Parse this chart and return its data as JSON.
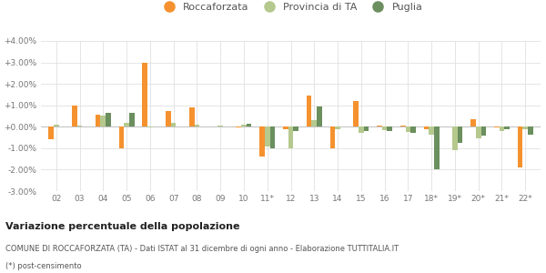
{
  "categories": [
    "02",
    "03",
    "04",
    "05",
    "06",
    "07",
    "08",
    "09",
    "10",
    "11*",
    "12",
    "13",
    "14",
    "15",
    "16",
    "17",
    "18*",
    "19*",
    "20*",
    "21*",
    "22*"
  ],
  "roccaforzata": [
    -0.6,
    1.0,
    0.55,
    -1.0,
    3.0,
    0.75,
    0.9,
    0.0,
    -0.05,
    -1.4,
    -0.1,
    1.45,
    -1.0,
    1.2,
    0.05,
    0.05,
    -0.1,
    0.0,
    0.35,
    -0.05,
    -1.9
  ],
  "provincia_ta": [
    0.1,
    0.05,
    0.5,
    0.2,
    -0.05,
    0.2,
    0.1,
    0.05,
    0.1,
    -0.9,
    -1.0,
    0.3,
    -0.1,
    -0.3,
    -0.15,
    -0.25,
    -0.35,
    -1.1,
    -0.55,
    -0.2,
    -0.1
  ],
  "puglia": [
    0.0,
    0.0,
    0.65,
    0.65,
    0.0,
    0.0,
    0.0,
    0.0,
    0.15,
    -1.0,
    -0.2,
    0.95,
    0.0,
    -0.2,
    -0.2,
    -0.3,
    -2.0,
    -0.75,
    -0.4,
    -0.1,
    -0.35
  ],
  "color_roccaforzata": "#f5922f",
  "color_provincia": "#b5c98e",
  "color_puglia": "#6b8f5e",
  "ylim": [
    -3.0,
    4.0
  ],
  "yticks": [
    -3.0,
    -2.0,
    -1.0,
    0.0,
    1.0,
    2.0,
    3.0,
    4.0
  ],
  "title_bold": "Variazione percentuale della popolazione",
  "subtitle1": "COMUNE DI ROCCAFORZATA (TA) - Dati ISTAT al 31 dicembre di ogni anno - Elaborazione TUTTITALIA.IT",
  "subtitle2": "(*) post-censimento",
  "legend_labels": [
    "Roccaforzata",
    "Provincia di TA",
    "Puglia"
  ],
  "background_color": "#ffffff",
  "grid_color": "#e0e0e0"
}
